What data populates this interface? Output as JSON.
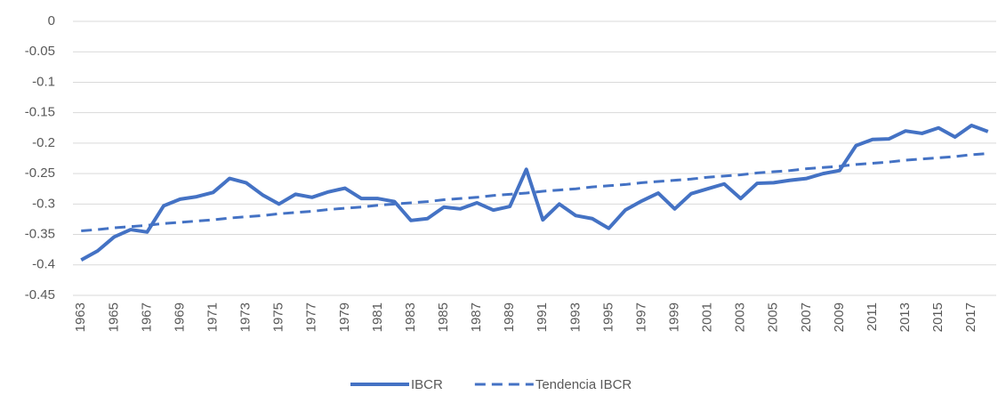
{
  "chart_data": {
    "type": "line",
    "categories": [
      "1963",
      null,
      "1965",
      null,
      "1967",
      null,
      "1969",
      null,
      "1971",
      null,
      "1973",
      null,
      "1975",
      null,
      "1977",
      null,
      "1979",
      null,
      "1981",
      null,
      "1983",
      null,
      "1985",
      null,
      "1987",
      null,
      "1989",
      null,
      "1991",
      null,
      "1993",
      null,
      "1995",
      null,
      "1997",
      null,
      "1999",
      null,
      "2001",
      null,
      "2003",
      null,
      "2005",
      null,
      "2007",
      null,
      "2009",
      null,
      "2011",
      null,
      "2013",
      null,
      "2015",
      null,
      "2017",
      null
    ],
    "series": [
      {
        "name": "IBCR",
        "color": "#4472c4",
        "line_style": "solid",
        "values": [
          -0.392,
          -0.377,
          -0.354,
          -0.342,
          -0.346,
          -0.303,
          -0.292,
          -0.288,
          -0.281,
          -0.258,
          -0.265,
          -0.285,
          -0.3,
          -0.284,
          -0.289,
          -0.28,
          -0.274,
          -0.291,
          -0.291,
          -0.296,
          -0.327,
          -0.324,
          -0.305,
          -0.308,
          -0.298,
          -0.31,
          -0.304,
          -0.243,
          -0.326,
          -0.3,
          -0.319,
          -0.324,
          -0.34,
          -0.31,
          -0.295,
          -0.282,
          -0.308,
          -0.283,
          -0.275,
          -0.267,
          -0.291,
          -0.266,
          -0.265,
          -0.261,
          -0.258,
          -0.25,
          -0.245,
          -0.204,
          -0.194,
          -0.193,
          -0.18,
          -0.184,
          -0.175,
          -0.19,
          -0.171,
          -0.181
        ]
      },
      {
        "name": "Tendencia IBCR",
        "color": "#4472c4",
        "line_style": "dashed",
        "values": [
          -0.344,
          -0.342,
          -0.339,
          -0.337,
          -0.335,
          -0.332,
          -0.33,
          -0.328,
          -0.326,
          -0.323,
          -0.321,
          -0.319,
          -0.316,
          -0.314,
          -0.312,
          -0.309,
          -0.307,
          -0.305,
          -0.302,
          -0.3,
          -0.298,
          -0.296,
          -0.293,
          -0.291,
          -0.289,
          -0.286,
          -0.284,
          -0.282,
          -0.279,
          -0.277,
          -0.275,
          -0.272,
          -0.27,
          -0.268,
          -0.265,
          -0.263,
          -0.261,
          -0.259,
          -0.256,
          -0.254,
          -0.252,
          -0.249,
          -0.247,
          -0.245,
          -0.242,
          -0.24,
          -0.238,
          -0.235,
          -0.233,
          -0.231,
          -0.228,
          -0.226,
          -0.224,
          -0.222,
          -0.219,
          -0.217
        ]
      }
    ],
    "ylim": [
      -0.45,
      0
    ],
    "yticks": [
      0,
      -0.05,
      -0.1,
      -0.15,
      -0.2,
      -0.25,
      -0.3,
      -0.35,
      -0.4,
      -0.45
    ],
    "grid": true,
    "legend": "bottom"
  }
}
